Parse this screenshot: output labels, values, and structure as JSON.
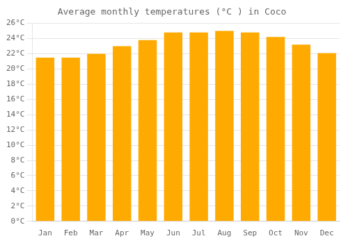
{
  "chart_data": {
    "type": "bar",
    "title": "Average monthly temperatures (°C ) in Coco",
    "categories": [
      "Jan",
      "Feb",
      "Mar",
      "Apr",
      "May",
      "Jun",
      "Jul",
      "Aug",
      "Sep",
      "Oct",
      "Nov",
      "Dec"
    ],
    "values": [
      21.5,
      21.5,
      22.0,
      23.0,
      23.8,
      24.8,
      24.8,
      25.0,
      24.8,
      24.2,
      23.2,
      22.1
    ],
    "color": "#FFAA00",
    "ylim": [
      0,
      26
    ],
    "yticks": [
      {
        "value": 0,
        "label": "0°C"
      },
      {
        "value": 2,
        "label": "2°C"
      },
      {
        "value": 4,
        "label": "4°C"
      },
      {
        "value": 6,
        "label": "6°C"
      },
      {
        "value": 8,
        "label": "8°C"
      },
      {
        "value": 10,
        "label": "10°C"
      },
      {
        "value": 12,
        "label": "12°C"
      },
      {
        "value": 14,
        "label": "14°C"
      },
      {
        "value": 16,
        "label": "16°C"
      },
      {
        "value": 18,
        "label": "18°C"
      },
      {
        "value": 20,
        "label": "20°C"
      },
      {
        "value": 22,
        "label": "22°C"
      },
      {
        "value": 24,
        "label": "24°C"
      },
      {
        "value": 26,
        "label": "26°C"
      }
    ],
    "grid": true
  }
}
